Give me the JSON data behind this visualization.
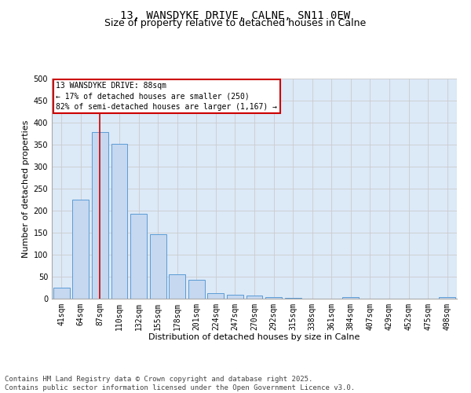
{
  "title_line1": "13, WANSDYKE DRIVE, CALNE, SN11 0EW",
  "title_line2": "Size of property relative to detached houses in Calne",
  "xlabel": "Distribution of detached houses by size in Calne",
  "ylabel": "Number of detached properties",
  "categories": [
    "41sqm",
    "64sqm",
    "87sqm",
    "110sqm",
    "132sqm",
    "155sqm",
    "178sqm",
    "201sqm",
    "224sqm",
    "247sqm",
    "270sqm",
    "292sqm",
    "315sqm",
    "338sqm",
    "361sqm",
    "384sqm",
    "407sqm",
    "429sqm",
    "452sqm",
    "475sqm",
    "498sqm"
  ],
  "values": [
    25,
    225,
    378,
    352,
    193,
    147,
    55,
    42,
    12,
    9,
    8,
    4,
    2,
    0,
    0,
    4,
    0,
    0,
    0,
    0,
    3
  ],
  "bar_color": "#c5d8f0",
  "bar_edge_color": "#5b9bd5",
  "grid_color": "#cccccc",
  "bg_color": "#dce9f7",
  "vline_color": "#cc0000",
  "vline_x_index": 2,
  "annotation_line1": "13 WANSDYKE DRIVE: 88sqm",
  "annotation_line2": "← 17% of detached houses are smaller (250)",
  "annotation_line3": "82% of semi-detached houses are larger (1,167) →",
  "annotation_box_color": "#cc0000",
  "ylim": [
    0,
    500
  ],
  "yticks": [
    0,
    50,
    100,
    150,
    200,
    250,
    300,
    350,
    400,
    450,
    500
  ],
  "footer_text": "Contains HM Land Registry data © Crown copyright and database right 2025.\nContains public sector information licensed under the Open Government Licence v3.0.",
  "title_fontsize": 10,
  "subtitle_fontsize": 9,
  "axis_label_fontsize": 8,
  "tick_fontsize": 7,
  "annotation_fontsize": 7,
  "footer_fontsize": 6.5
}
